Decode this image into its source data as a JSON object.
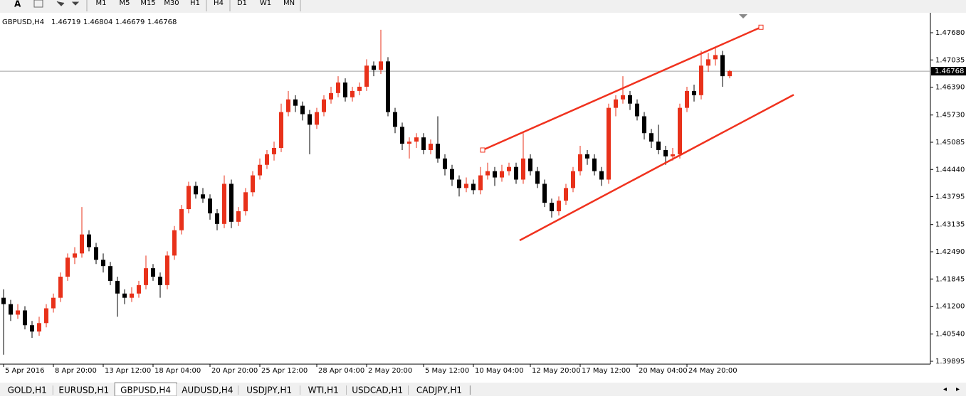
{
  "toolbar": {
    "font_button": "A",
    "timeframes": [
      "M1",
      "M5",
      "M15",
      "M30",
      "H1",
      "H4",
      "D1",
      "W1",
      "MN"
    ]
  },
  "chart_data": {
    "type": "candlestick",
    "symbol": "GBPUSD,H4",
    "quote": [
      1.46719,
      1.46804,
      1.46679,
      1.46768
    ],
    "up_color": "#e8311a",
    "down_color": "#000000",
    "candles": [
      [
        1.414,
        1.416,
        1.4005,
        1.4125
      ],
      [
        1.4125,
        1.4135,
        1.4085,
        1.41
      ],
      [
        1.41,
        1.4125,
        1.409,
        1.411
      ],
      [
        1.411,
        1.412,
        1.4065,
        1.4075
      ],
      [
        1.4075,
        1.4085,
        1.4045,
        1.406
      ],
      [
        1.406,
        1.4095,
        1.405,
        1.408
      ],
      [
        1.408,
        1.4125,
        1.407,
        1.4115
      ],
      [
        1.4115,
        1.415,
        1.4105,
        1.414
      ],
      [
        1.414,
        1.42,
        1.413,
        1.419
      ],
      [
        1.419,
        1.4245,
        1.418,
        1.4235
      ],
      [
        1.4235,
        1.426,
        1.422,
        1.4245
      ],
      [
        1.4245,
        1.4355,
        1.4235,
        1.429
      ],
      [
        1.429,
        1.43,
        1.425,
        1.426
      ],
      [
        1.426,
        1.427,
        1.422,
        1.423
      ],
      [
        1.423,
        1.4245,
        1.42,
        1.4215
      ],
      [
        1.4215,
        1.4225,
        1.417,
        1.418
      ],
      [
        1.418,
        1.419,
        1.4095,
        1.415
      ],
      [
        1.415,
        1.416,
        1.4125,
        1.414
      ],
      [
        1.414,
        1.4165,
        1.413,
        1.415
      ],
      [
        1.415,
        1.418,
        1.414,
        1.417
      ],
      [
        1.417,
        1.424,
        1.416,
        1.421
      ],
      [
        1.421,
        1.422,
        1.418,
        1.419
      ],
      [
        1.419,
        1.42,
        1.414,
        1.417
      ],
      [
        1.417,
        1.425,
        1.416,
        1.424
      ],
      [
        1.424,
        1.431,
        1.423,
        1.43
      ],
      [
        1.43,
        1.436,
        1.429,
        1.435
      ],
      [
        1.435,
        1.4415,
        1.434,
        1.4405
      ],
      [
        1.4405,
        1.4415,
        1.4375,
        1.4385
      ],
      [
        1.4385,
        1.44,
        1.4365,
        1.4375
      ],
      [
        1.4375,
        1.4385,
        1.4325,
        1.434
      ],
      [
        1.434,
        1.435,
        1.43,
        1.4315
      ],
      [
        1.4315,
        1.443,
        1.4305,
        1.441
      ],
      [
        1.441,
        1.442,
        1.4305,
        1.432
      ],
      [
        1.432,
        1.4355,
        1.431,
        1.4345
      ],
      [
        1.4345,
        1.44,
        1.4335,
        1.439
      ],
      [
        1.439,
        1.444,
        1.438,
        1.443
      ],
      [
        1.443,
        1.447,
        1.442,
        1.4455
      ],
      [
        1.4455,
        1.449,
        1.4445,
        1.448
      ],
      [
        1.448,
        1.451,
        1.4465,
        1.4495
      ],
      [
        1.4495,
        1.46,
        1.4485,
        1.458
      ],
      [
        1.458,
        1.463,
        1.457,
        1.461
      ],
      [
        1.461,
        1.462,
        1.458,
        1.4595
      ],
      [
        1.4595,
        1.4605,
        1.456,
        1.4575
      ],
      [
        1.4575,
        1.4585,
        1.448,
        1.455
      ],
      [
        1.455,
        1.459,
        1.454,
        1.458
      ],
      [
        1.458,
        1.462,
        1.457,
        1.461
      ],
      [
        1.461,
        1.464,
        1.46,
        1.4625
      ],
      [
        1.4625,
        1.4665,
        1.4615,
        1.465
      ],
      [
        1.465,
        1.466,
        1.4605,
        1.4615
      ],
      [
        1.4615,
        1.464,
        1.4605,
        1.463
      ],
      [
        1.463,
        1.465,
        1.462,
        1.464
      ],
      [
        1.464,
        1.4705,
        1.463,
        1.469
      ],
      [
        1.469,
        1.47,
        1.4665,
        1.468
      ],
      [
        1.468,
        1.4775,
        1.467,
        1.47
      ],
      [
        1.47,
        1.471,
        1.457,
        1.458
      ],
      [
        1.458,
        1.459,
        1.453,
        1.4545
      ],
      [
        1.4545,
        1.4555,
        1.449,
        1.4505
      ],
      [
        1.4505,
        1.452,
        1.447,
        1.451
      ],
      [
        1.451,
        1.453,
        1.4495,
        1.452
      ],
      [
        1.452,
        1.453,
        1.448,
        1.449
      ],
      [
        1.449,
        1.4515,
        1.448,
        1.4505
      ],
      [
        1.4505,
        1.457,
        1.446,
        1.447
      ],
      [
        1.447,
        1.448,
        1.443,
        1.4445
      ],
      [
        1.4445,
        1.4455,
        1.4405,
        1.442
      ],
      [
        1.442,
        1.443,
        1.438,
        1.44
      ],
      [
        1.44,
        1.4425,
        1.439,
        1.441
      ],
      [
        1.441,
        1.442,
        1.4385,
        1.4395
      ],
      [
        1.4395,
        1.445,
        1.4385,
        1.443
      ],
      [
        1.443,
        1.446,
        1.442,
        1.444
      ],
      [
        1.444,
        1.445,
        1.4405,
        1.4425
      ],
      [
        1.4425,
        1.4455,
        1.4415,
        1.444
      ],
      [
        1.444,
        1.446,
        1.443,
        1.445
      ],
      [
        1.445,
        1.446,
        1.441,
        1.442
      ],
      [
        1.442,
        1.453,
        1.441,
        1.447
      ],
      [
        1.447,
        1.448,
        1.443,
        1.444
      ],
      [
        1.444,
        1.445,
        1.44,
        1.441
      ],
      [
        1.441,
        1.442,
        1.4355,
        1.4365
      ],
      [
        1.4365,
        1.4375,
        1.433,
        1.4345
      ],
      [
        1.4345,
        1.438,
        1.4335,
        1.437
      ],
      [
        1.437,
        1.441,
        1.436,
        1.44
      ],
      [
        1.44,
        1.445,
        1.439,
        1.444
      ],
      [
        1.444,
        1.45,
        1.443,
        1.448
      ],
      [
        1.448,
        1.449,
        1.4455,
        1.447
      ],
      [
        1.447,
        1.448,
        1.443,
        1.444
      ],
      [
        1.444,
        1.445,
        1.4405,
        1.442
      ],
      [
        1.442,
        1.46,
        1.441,
        1.459
      ],
      [
        1.459,
        1.462,
        1.457,
        1.461
      ],
      [
        1.461,
        1.4665,
        1.46,
        1.462
      ],
      [
        1.462,
        1.463,
        1.4585,
        1.46
      ],
      [
        1.46,
        1.461,
        1.456,
        1.457
      ],
      [
        1.457,
        1.458,
        1.4515,
        1.453
      ],
      [
        1.453,
        1.454,
        1.4495,
        1.451
      ],
      [
        1.451,
        1.455,
        1.448,
        1.449
      ],
      [
        1.449,
        1.45,
        1.4455,
        1.4475
      ],
      [
        1.4475,
        1.4495,
        1.4465,
        1.448
      ],
      [
        1.448,
        1.46,
        1.447,
        1.459
      ],
      [
        1.459,
        1.464,
        1.458,
        1.463
      ],
      [
        1.463,
        1.4645,
        1.4605,
        1.462
      ],
      [
        1.462,
        1.4725,
        1.461,
        1.469
      ],
      [
        1.469,
        1.472,
        1.4675,
        1.4705
      ],
      [
        1.4705,
        1.4735,
        1.469,
        1.4715
      ],
      [
        1.4715,
        1.4725,
        1.464,
        1.4665
      ],
      [
        1.4665,
        1.468,
        1.466,
        1.4677
      ]
    ],
    "x_labels": [
      {
        "index": 0,
        "label": "5 Apr 2016"
      },
      {
        "index": 7,
        "label": "8 Apr 20:00"
      },
      {
        "index": 14,
        "label": "13 Apr 12:00"
      },
      {
        "index": 21,
        "label": "18 Apr 04:00"
      },
      {
        "index": 29,
        "label": "20 Apr 20:00"
      },
      {
        "index": 36,
        "label": "25 Apr 12:00"
      },
      {
        "index": 44,
        "label": "28 Apr 04:00"
      },
      {
        "index": 51,
        "label": "2 May 20:00"
      },
      {
        "index": 59,
        "label": "5 May 12:00"
      },
      {
        "index": 66,
        "label": "10 May 04:00"
      },
      {
        "index": 74,
        "label": "12 May 20:00"
      },
      {
        "index": 81,
        "label": "17 May 12:00"
      },
      {
        "index": 89,
        "label": "20 May 04:00"
      },
      {
        "index": 96,
        "label": "24 May 20:00"
      }
    ],
    "ylim": [
      1.39861,
      1.48118
    ],
    "yticks": [
      {
        "value": 1.4768,
        "label": "1.47680"
      },
      1.47035,
      {
        "value": 1.4639,
        "label": "1.46390"
      },
      {
        "value": 1.4573,
        "label": "1.45730"
      },
      1.45085,
      {
        "value": 1.4444,
        "label": "1.44440"
      },
      1.43795,
      1.43135,
      {
        "value": 1.4249,
        "label": "1.42490"
      },
      1.41845,
      {
        "value": 1.412,
        "label": "1.41200"
      },
      {
        "value": 1.4054,
        "label": "1.40540"
      },
      1.39895
    ],
    "current_price": 1.46768,
    "trendline_color": "#f0321e",
    "trendlines": [
      {
        "from": [
          67.3,
          1.449
        ],
        "to": [
          106.4,
          1.4781
        ]
      },
      {
        "from": [
          72.5,
          1.4276
        ],
        "to": [
          111,
          1.4621
        ]
      }
    ]
  },
  "tabs": {
    "items": [
      "GOLD,H1",
      "EURUSD,H1",
      "GBPUSD,H4",
      "AUDUSD,H4",
      "USDJPY,H1",
      "WTI,H1",
      "USDCAD,H1",
      "CADJPY,H1"
    ],
    "active": 2
  }
}
